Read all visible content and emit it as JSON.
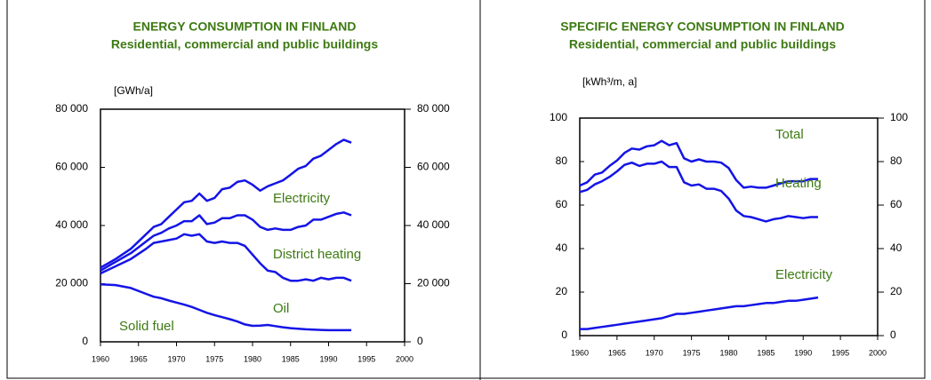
{
  "chart_data": [
    {
      "type": "line",
      "stacked": true,
      "title": "ENERGY CONSUMPTION IN FINLAND",
      "subtitle": "Residential, commercial and public buildings",
      "y_label": "[GWh/a]",
      "x": [
        1960,
        1962,
        1964,
        1966,
        1967,
        1968,
        1969,
        1970,
        1971,
        1972,
        1973,
        1974,
        1975,
        1976,
        1977,
        1978,
        1979,
        1980,
        1981,
        1982,
        1983,
        1984,
        1985,
        1986,
        1987,
        1988,
        1989,
        1990,
        1991,
        1992,
        1993
      ],
      "series": [
        {
          "name": "Solid fuel",
          "color": "#1414e6",
          "values": [
            19800,
            19500,
            18500,
            16500,
            15500,
            15000,
            14200,
            13500,
            12800,
            12000,
            11000,
            10000,
            9200,
            8500,
            7800,
            7000,
            6000,
            5500,
            5600,
            5800,
            5400,
            5000,
            4700,
            4500,
            4300,
            4200,
            4100,
            4000,
            4000,
            4000,
            4000
          ]
        },
        {
          "name": "Oil",
          "color": "#1414e6",
          "values": [
            3700,
            6500,
            10000,
            15500,
            18500,
            19500,
            20800,
            22000,
            24200,
            24500,
            26000,
            24500,
            24800,
            26000,
            26200,
            27000,
            27000,
            24500,
            21400,
            18700,
            18600,
            17000,
            16300,
            16500,
            17200,
            16800,
            17900,
            17500,
            18000,
            18000,
            17000
          ]
        },
        {
          "name": "District heating",
          "color": "#1414e6",
          "values": [
            1000,
            1500,
            2000,
            2500,
            2500,
            3000,
            4000,
            4500,
            4500,
            5000,
            6500,
            6000,
            7000,
            8000,
            8500,
            9500,
            10500,
            12000,
            12500,
            14000,
            15000,
            16500,
            17500,
            18500,
            18500,
            21000,
            20000,
            21500,
            22000,
            22500,
            22500
          ]
        },
        {
          "name": "Electricity",
          "color": "#1414e6",
          "values": [
            1000,
            1000,
            1500,
            2500,
            3000,
            3000,
            4000,
            5500,
            6500,
            7000,
            7500,
            8000,
            8500,
            10000,
            10500,
            11500,
            12000,
            12000,
            12500,
            15000,
            15500,
            17000,
            19000,
            20000,
            20500,
            21000,
            22000,
            23000,
            24000,
            25000,
            25000
          ]
        }
      ],
      "xlim": [
        1960,
        2000
      ],
      "xticks": [
        1960,
        1965,
        1970,
        1975,
        1980,
        1985,
        1990,
        1995,
        2000
      ],
      "ylim": [
        0,
        80000
      ],
      "yticks": [
        0,
        {
          "value": 20000,
          "label": "20 000"
        },
        {
          "value": 40000,
          "label": "40 000"
        },
        {
          "value": 60000,
          "label": "60 000"
        },
        {
          "value": 80000,
          "label": "80 000"
        }
      ],
      "y2lim": [
        0,
        80000
      ],
      "y2ticks": [
        0,
        {
          "value": 20000,
          "label": "20 000"
        },
        {
          "value": 40000,
          "label": "40 000"
        },
        {
          "value": 60000,
          "label": "60 000"
        },
        {
          "value": 80000,
          "label": "80 000"
        }
      ]
    },
    {
      "type": "line",
      "stacked": false,
      "title": "SPECIFIC ENERGY CONSUMPTION IN FINLAND",
      "subtitle": "Residential, commercial and public buildings",
      "y_label": "[kWh³/m, a]",
      "x": [
        1960,
        1961,
        1962,
        1963,
        1964,
        1965,
        1966,
        1967,
        1968,
        1969,
        1970,
        1971,
        1972,
        1973,
        1974,
        1975,
        1976,
        1977,
        1978,
        1979,
        1980,
        1981,
        1982,
        1983,
        1984,
        1985,
        1986,
        1987,
        1988,
        1989,
        1990,
        1991,
        1992
      ],
      "series": [
        {
          "name": "Total",
          "color": "#1414e6",
          "values": [
            69,
            70.5,
            74,
            75,
            78,
            80.5,
            84,
            86,
            85.5,
            87,
            87.5,
            89.5,
            87.5,
            88.5,
            81.5,
            80,
            81,
            80,
            80,
            79.5,
            77,
            71.5,
            68,
            68.5,
            68,
            68,
            69,
            70,
            71,
            71,
            71,
            72,
            72
          ]
        },
        {
          "name": "Heating",
          "color": "#1414e6",
          "values": [
            66,
            67,
            69.5,
            71,
            73,
            75.5,
            78.5,
            79.5,
            78,
            79,
            79,
            80,
            77.5,
            77.5,
            70.5,
            69,
            69.5,
            67.5,
            67.5,
            66.5,
            63,
            57.5,
            55,
            54.5,
            53.5,
            52.5,
            53.5,
            54,
            55,
            54.5,
            54,
            54.5,
            54.5
          ]
        },
        {
          "name": "Electricity",
          "color": "#1414e6",
          "values": [
            3,
            3,
            3.5,
            4,
            4.5,
            5,
            5.5,
            6,
            6.5,
            7,
            7.5,
            8,
            9,
            10,
            10,
            10.5,
            11,
            11.5,
            12,
            12.5,
            13,
            13.5,
            13.5,
            14,
            14.5,
            15,
            15,
            15.5,
            16,
            16,
            16.5,
            17,
            17.5
          ]
        }
      ],
      "xlim": [
        1960,
        2000
      ],
      "xticks": [
        1960,
        1965,
        1970,
        1975,
        1980,
        1985,
        1990,
        1995,
        2000
      ],
      "ylim": [
        0,
        100
      ],
      "yticks": [
        0,
        20,
        40,
        60,
        80,
        100
      ],
      "y2lim": [
        0,
        100
      ],
      "y2ticks": [
        0,
        20,
        40,
        60,
        80,
        100
      ]
    }
  ]
}
